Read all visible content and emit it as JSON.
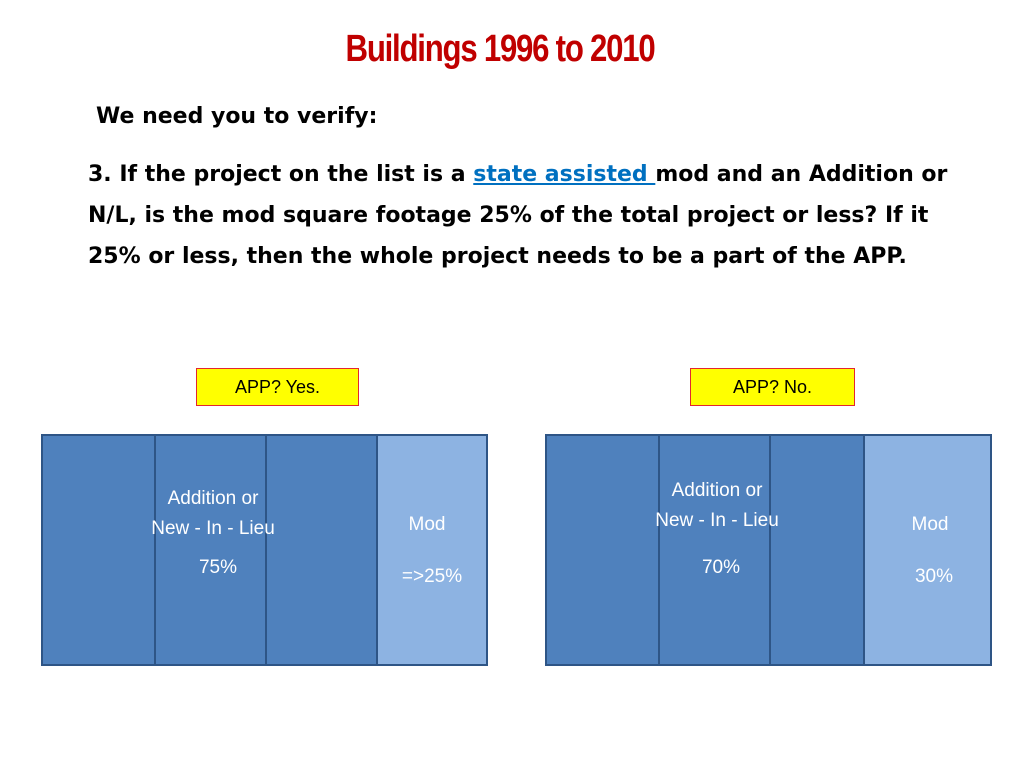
{
  "slide": {
    "title": "Buildings 1996 to 2010",
    "subtitle": "We need you to verify:",
    "body": {
      "prefix": "3. If the project on the list is a ",
      "link_text": "state assisted ",
      "suffix": "mod and an Addition or N/L, is the mod square footage 25% of the total project or less?  If it 25% or less, then the whole project needs to be a part of the APP."
    }
  },
  "left_example": {
    "app_label": "APP?  Yes.",
    "addition_line1": "Addition or",
    "addition_line2": "New - In - Lieu",
    "addition_percent": "75%",
    "mod_label": "Mod",
    "mod_percent": "=>25%"
  },
  "right_example": {
    "app_label": "APP?  No.",
    "addition_line1": "Addition or",
    "addition_line2": "New - In - Lieu",
    "addition_percent": "70%",
    "mod_label": "Mod",
    "mod_percent": "30%"
  },
  "colors": {
    "title": "#c00000",
    "link": "#0070c0",
    "addition_block": "#4f81bd",
    "mod_block": "#8db3e2",
    "app_box_fill": "#ffff00",
    "app_box_border": "#e3262d"
  }
}
